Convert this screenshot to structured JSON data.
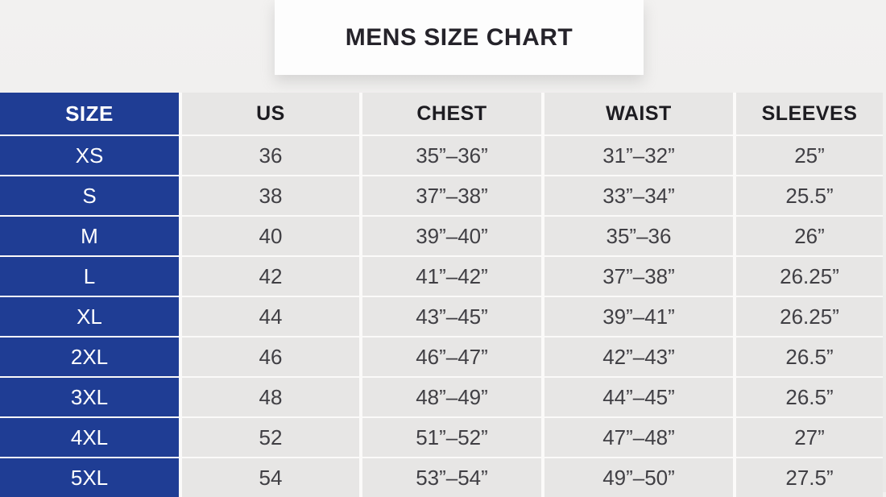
{
  "page": {
    "title_card": {
      "title": "MENS SIZE CHART"
    }
  },
  "chart_data": {
    "type": "table",
    "title": "MENS SIZE CHART",
    "columns": [
      "SIZE",
      "US",
      "CHEST",
      "WAIST",
      "SLEEVES"
    ],
    "rows": [
      [
        "XS",
        "36",
        "35”–36”",
        "31”–32”",
        "25”"
      ],
      [
        "S",
        "38",
        "37”–38”",
        "33”–34”",
        "25.5”"
      ],
      [
        "M",
        "40",
        "39”–40”",
        "35”–36",
        "26”"
      ],
      [
        "L",
        "42",
        "41”–42”",
        "37”–38”",
        "26.25”"
      ],
      [
        "XL",
        "44",
        "43”–45”",
        "39”–41”",
        "26.25”"
      ],
      [
        "2XL",
        "46",
        "46”–47”",
        "42”–43”",
        "26.5”"
      ],
      [
        "3XL",
        "48",
        "48”–49”",
        "44”–45”",
        "26.5”"
      ],
      [
        "4XL",
        "52",
        "51”–52”",
        "47”–48”",
        "27”"
      ],
      [
        "5XL",
        "54",
        "53”–54”",
        "49”–50”",
        "27.5”"
      ]
    ],
    "layout": {
      "size_column_style": "blue-background-white-text",
      "grid": "light-gray-cells-with-white-gaps",
      "header_row": "bold"
    }
  },
  "colors": {
    "size_column_blue": "#1f3d94",
    "cell_gray": "#e7e6e5",
    "header_text": "#1d1c21",
    "data_text": "#403f44",
    "page_background": "#efeeed",
    "card_background": "#fdfdfd"
  }
}
